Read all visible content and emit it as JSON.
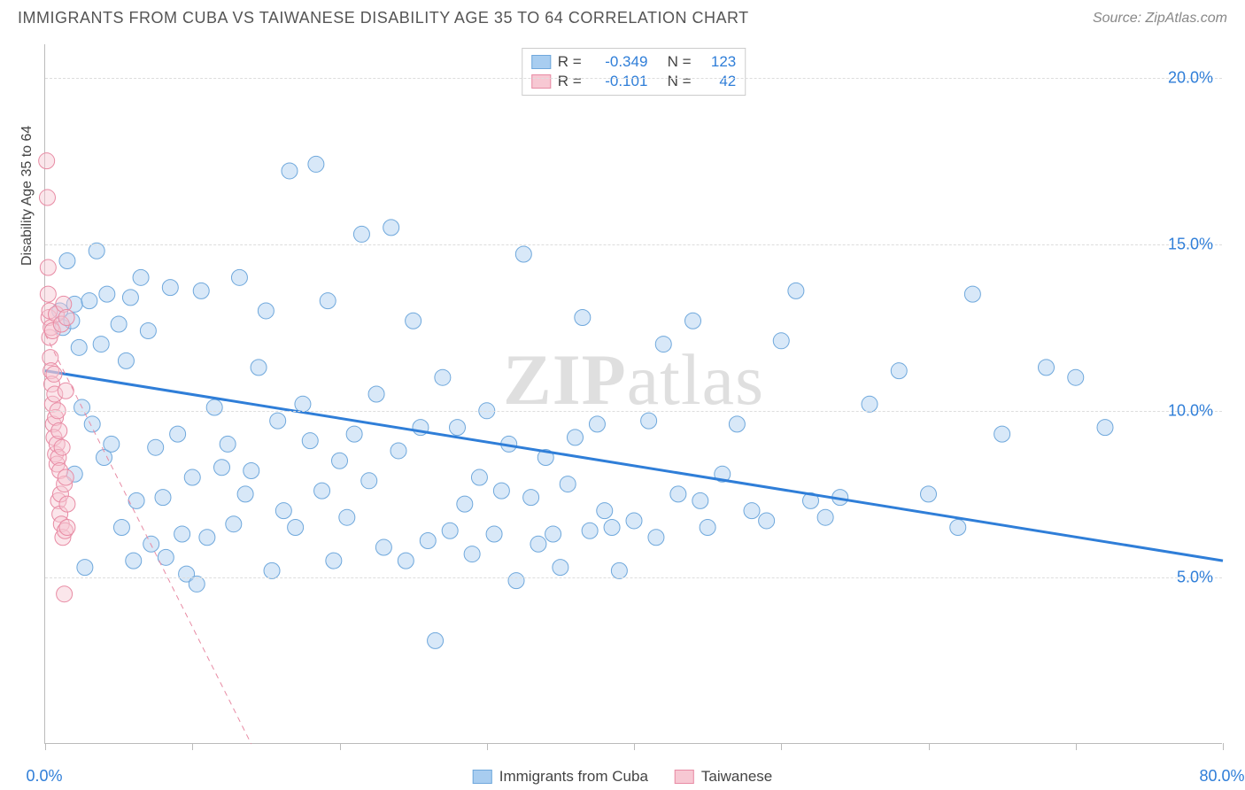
{
  "header": {
    "title": "IMMIGRANTS FROM CUBA VS TAIWANESE DISABILITY AGE 35 TO 64 CORRELATION CHART",
    "source": "Source: ZipAtlas.com"
  },
  "chart": {
    "type": "scatter",
    "y_axis_label": "Disability Age 35 to 64",
    "xlim": [
      0,
      80
    ],
    "ylim": [
      0,
      21
    ],
    "x_ticks": [
      0,
      10,
      20,
      30,
      40,
      50,
      60,
      70,
      80
    ],
    "x_tick_labels": {
      "0": "0.0%",
      "80": "80.0%"
    },
    "y_ticks": [
      5,
      10,
      15,
      20
    ],
    "y_tick_labels": {
      "5": "5.0%",
      "10": "10.0%",
      "15": "15.0%",
      "20": "20.0%"
    },
    "background_color": "#ffffff",
    "grid_color": "#dddddd",
    "axis_color": "#bbbbbb",
    "tick_label_color": "#2f7ed8",
    "marker_radius": 9,
    "marker_opacity": 0.45,
    "watermark": "ZIPatlas",
    "series": [
      {
        "name": "Immigrants from Cuba",
        "color_fill": "#a8cdf0",
        "color_stroke": "#6fa8dc",
        "r_value": "-0.349",
        "n_value": "123",
        "trend": {
          "x1": 0,
          "y1": 11.2,
          "x2": 80,
          "y2": 5.5,
          "color": "#2f7ed8",
          "width": 3,
          "dash": "none"
        },
        "points": [
          [
            1,
            13
          ],
          [
            1.2,
            12.5
          ],
          [
            1.5,
            14.5
          ],
          [
            1.8,
            12.7
          ],
          [
            2,
            13.2
          ],
          [
            2,
            8.1
          ],
          [
            2.3,
            11.9
          ],
          [
            2.5,
            10.1
          ],
          [
            2.7,
            5.3
          ],
          [
            3,
            13.3
          ],
          [
            3.2,
            9.6
          ],
          [
            3.5,
            14.8
          ],
          [
            3.8,
            12
          ],
          [
            4,
            8.6
          ],
          [
            4.2,
            13.5
          ],
          [
            4.5,
            9
          ],
          [
            5,
            12.6
          ],
          [
            5.2,
            6.5
          ],
          [
            5.5,
            11.5
          ],
          [
            5.8,
            13.4
          ],
          [
            6,
            5.5
          ],
          [
            6.2,
            7.3
          ],
          [
            6.5,
            14
          ],
          [
            7,
            12.4
          ],
          [
            7.2,
            6
          ],
          [
            7.5,
            8.9
          ],
          [
            8,
            7.4
          ],
          [
            8.2,
            5.6
          ],
          [
            8.5,
            13.7
          ],
          [
            9,
            9.3
          ],
          [
            9.3,
            6.3
          ],
          [
            9.6,
            5.1
          ],
          [
            10,
            8
          ],
          [
            10.3,
            4.8
          ],
          [
            10.6,
            13.6
          ],
          [
            11,
            6.2
          ],
          [
            11.5,
            10.1
          ],
          [
            12,
            8.3
          ],
          [
            12.4,
            9
          ],
          [
            12.8,
            6.6
          ],
          [
            13.2,
            14
          ],
          [
            13.6,
            7.5
          ],
          [
            14,
            8.2
          ],
          [
            14.5,
            11.3
          ],
          [
            15,
            13
          ],
          [
            15.4,
            5.2
          ],
          [
            15.8,
            9.7
          ],
          [
            16.2,
            7
          ],
          [
            16.6,
            17.2
          ],
          [
            17,
            6.5
          ],
          [
            17.5,
            10.2
          ],
          [
            18,
            9.1
          ],
          [
            18.4,
            17.4
          ],
          [
            18.8,
            7.6
          ],
          [
            19.2,
            13.3
          ],
          [
            19.6,
            5.5
          ],
          [
            20,
            8.5
          ],
          [
            20.5,
            6.8
          ],
          [
            21,
            9.3
          ],
          [
            21.5,
            15.3
          ],
          [
            22,
            7.9
          ],
          [
            22.5,
            10.5
          ],
          [
            23,
            5.9
          ],
          [
            23.5,
            15.5
          ],
          [
            24,
            8.8
          ],
          [
            24.5,
            5.5
          ],
          [
            25,
            12.7
          ],
          [
            25.5,
            9.5
          ],
          [
            26,
            6.1
          ],
          [
            26.5,
            3.1
          ],
          [
            27,
            11
          ],
          [
            27.5,
            6.4
          ],
          [
            28,
            9.5
          ],
          [
            28.5,
            7.2
          ],
          [
            29,
            5.7
          ],
          [
            29.5,
            8
          ],
          [
            30,
            10
          ],
          [
            30.5,
            6.3
          ],
          [
            31,
            7.6
          ],
          [
            31.5,
            9
          ],
          [
            32,
            4.9
          ],
          [
            32.5,
            14.7
          ],
          [
            33,
            7.4
          ],
          [
            33.5,
            6
          ],
          [
            34,
            8.6
          ],
          [
            34.5,
            6.3
          ],
          [
            35,
            5.3
          ],
          [
            35.5,
            7.8
          ],
          [
            36,
            9.2
          ],
          [
            36.5,
            12.8
          ],
          [
            37,
            6.4
          ],
          [
            37.5,
            9.6
          ],
          [
            38,
            7
          ],
          [
            38.5,
            6.5
          ],
          [
            39,
            5.2
          ],
          [
            40,
            6.7
          ],
          [
            41,
            9.7
          ],
          [
            41.5,
            6.2
          ],
          [
            42,
            12
          ],
          [
            43,
            7.5
          ],
          [
            44,
            12.7
          ],
          [
            44.5,
            7.3
          ],
          [
            45,
            6.5
          ],
          [
            46,
            8.1
          ],
          [
            47,
            9.6
          ],
          [
            48,
            7
          ],
          [
            49,
            6.7
          ],
          [
            50,
            12.1
          ],
          [
            51,
            13.6
          ],
          [
            52,
            7.3
          ],
          [
            53,
            6.8
          ],
          [
            54,
            7.4
          ],
          [
            56,
            10.2
          ],
          [
            58,
            11.2
          ],
          [
            60,
            7.5
          ],
          [
            62,
            6.5
          ],
          [
            63,
            13.5
          ],
          [
            65,
            9.3
          ],
          [
            68,
            11.3
          ],
          [
            70,
            11
          ],
          [
            72,
            9.5
          ]
        ]
      },
      {
        "name": "Taiwanese",
        "color_fill": "#f7c8d3",
        "color_stroke": "#e88ba4",
        "r_value": "-0.101",
        "n_value": "42",
        "trend": {
          "x1": 0,
          "y1": 12.3,
          "x2": 14,
          "y2": 0,
          "color": "#e88ba4",
          "width": 1,
          "dash": "6,5"
        },
        "points": [
          [
            0.1,
            17.5
          ],
          [
            0.15,
            16.4
          ],
          [
            0.2,
            14.3
          ],
          [
            0.2,
            13.5
          ],
          [
            0.25,
            12.8
          ],
          [
            0.3,
            13
          ],
          [
            0.3,
            12.2
          ],
          [
            0.35,
            11.6
          ],
          [
            0.4,
            12.5
          ],
          [
            0.4,
            11.2
          ],
          [
            0.45,
            10.8
          ],
          [
            0.5,
            12.4
          ],
          [
            0.5,
            10.2
          ],
          [
            0.55,
            9.6
          ],
          [
            0.6,
            11.1
          ],
          [
            0.6,
            9.2
          ],
          [
            0.65,
            10.5
          ],
          [
            0.7,
            9.8
          ],
          [
            0.7,
            8.7
          ],
          [
            0.75,
            12.9
          ],
          [
            0.8,
            9
          ],
          [
            0.8,
            8.4
          ],
          [
            0.85,
            10
          ],
          [
            0.9,
            8.6
          ],
          [
            0.9,
            7.3
          ],
          [
            0.95,
            9.4
          ],
          [
            1,
            8.2
          ],
          [
            1,
            6.9
          ],
          [
            1.05,
            7.5
          ],
          [
            1.1,
            12.6
          ],
          [
            1.1,
            6.6
          ],
          [
            1.15,
            8.9
          ],
          [
            1.2,
            6.2
          ],
          [
            1.25,
            13.2
          ],
          [
            1.3,
            7.8
          ],
          [
            1.3,
            4.5
          ],
          [
            1.35,
            6.4
          ],
          [
            1.4,
            10.6
          ],
          [
            1.4,
            8
          ],
          [
            1.45,
            12.8
          ],
          [
            1.5,
            7.2
          ],
          [
            1.5,
            6.5
          ]
        ]
      }
    ],
    "bottom_legend": [
      {
        "label": "Immigrants from Cuba",
        "fill": "#a8cdf0",
        "stroke": "#6fa8dc"
      },
      {
        "label": "Taiwanese",
        "fill": "#f7c8d3",
        "stroke": "#e88ba4"
      }
    ]
  }
}
